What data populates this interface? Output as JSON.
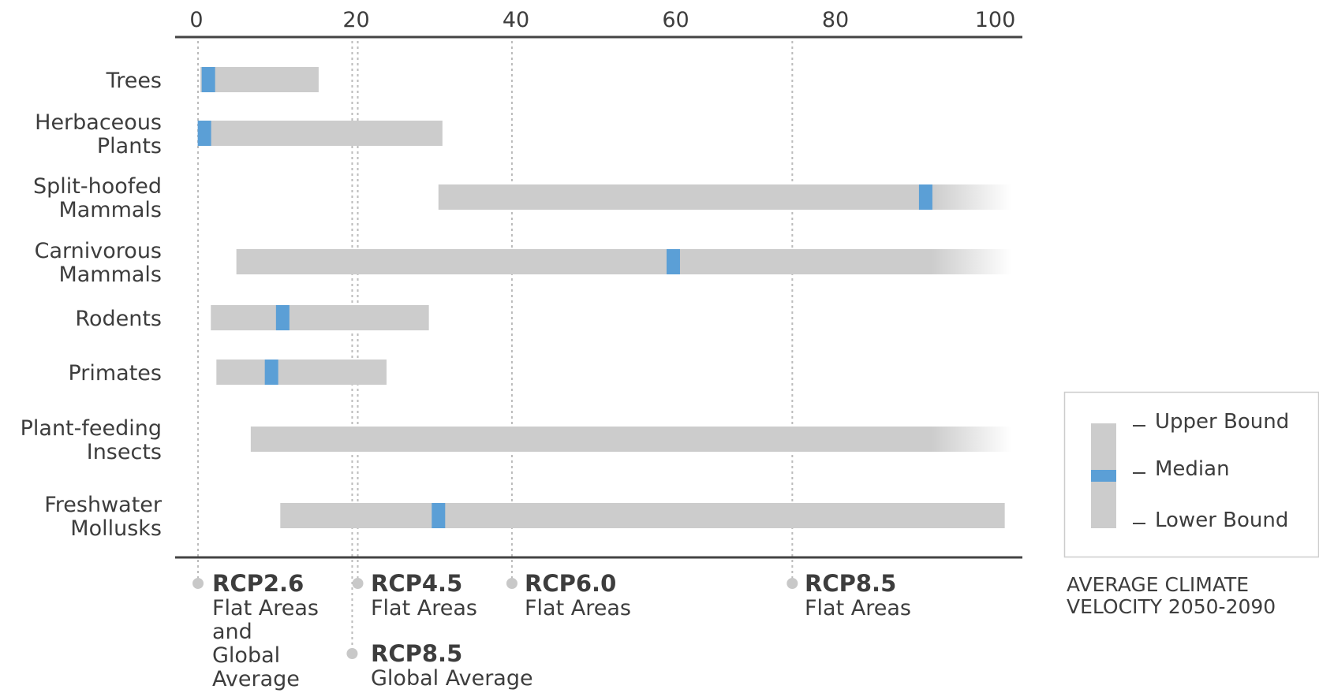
{
  "chart_data": {
    "type": "bar",
    "subtype": "range-with-median",
    "x_ticks": [
      0,
      20,
      40,
      60,
      80,
      100
    ],
    "xlim": [
      0,
      102
    ],
    "categories": [
      "Trees",
      "Herbaceous Plants",
      "Split-hoofed Mammals",
      "Carnivorous Mammals",
      "Rodents",
      "Primates",
      "Plant-feeding Insects",
      "Freshwater Mollusks"
    ],
    "category_lines": [
      [
        "Trees"
      ],
      [
        "Herbaceous",
        "Plants"
      ],
      [
        "Split-hoofed",
        "Mammals"
      ],
      [
        "Carnivorous",
        "Mammals"
      ],
      [
        "Rodents"
      ],
      [
        "Primates"
      ],
      [
        "Plant-feeding",
        "Insects"
      ],
      [
        "Freshwater",
        "Mollusks"
      ]
    ],
    "series": [
      {
        "name": "Lower Bound",
        "values": [
          0.5,
          0.2,
          30.3,
          5.0,
          1.8,
          2.5,
          6.8,
          10.5
        ]
      },
      {
        "name": "Median",
        "values": [
          1.5,
          1.0,
          91.3,
          59.7,
          10.8,
          9.4,
          null,
          30.3
        ]
      },
      {
        "name": "Upper Bound",
        "values": [
          15.3,
          30.8,
          102,
          102,
          29.1,
          23.8,
          102,
          101.2
        ]
      }
    ],
    "extends_beyond_axis": [
      false,
      false,
      true,
      true,
      false,
      false,
      true,
      false
    ],
    "reference_lines": [
      {
        "value": 0.2,
        "name": "RCP2.6",
        "lines": [
          "Flat Areas",
          "and",
          "Global",
          "Average"
        ]
      },
      {
        "value": 20.2,
        "name": "RCP4.5",
        "lines": [
          "Flat Areas"
        ]
      },
      {
        "value": 19.5,
        "name": "RCP8.5",
        "lines": [
          "Global Average"
        ]
      },
      {
        "value": 39.5,
        "name": "RCP6.0",
        "lines": [
          "Flat Areas"
        ]
      },
      {
        "value": 74.6,
        "name": "RCP8.5",
        "lines": [
          "Flat Areas"
        ]
      }
    ],
    "legend": {
      "position": "bottom-right",
      "items": [
        "Upper Bound",
        "Median",
        "Lower Bound"
      ]
    },
    "footer_lines": [
      "AVERAGE CLIMATE",
      "VELOCITY 2050-2090"
    ]
  },
  "colors": {
    "range": "#cccccc",
    "median": "#5b9fd6",
    "axis": "#444444",
    "reference_line": "#bbbbbb",
    "reference_dot": "#c8c8c8",
    "text": "#3d3d3d",
    "legend_border": "#cccccc"
  }
}
